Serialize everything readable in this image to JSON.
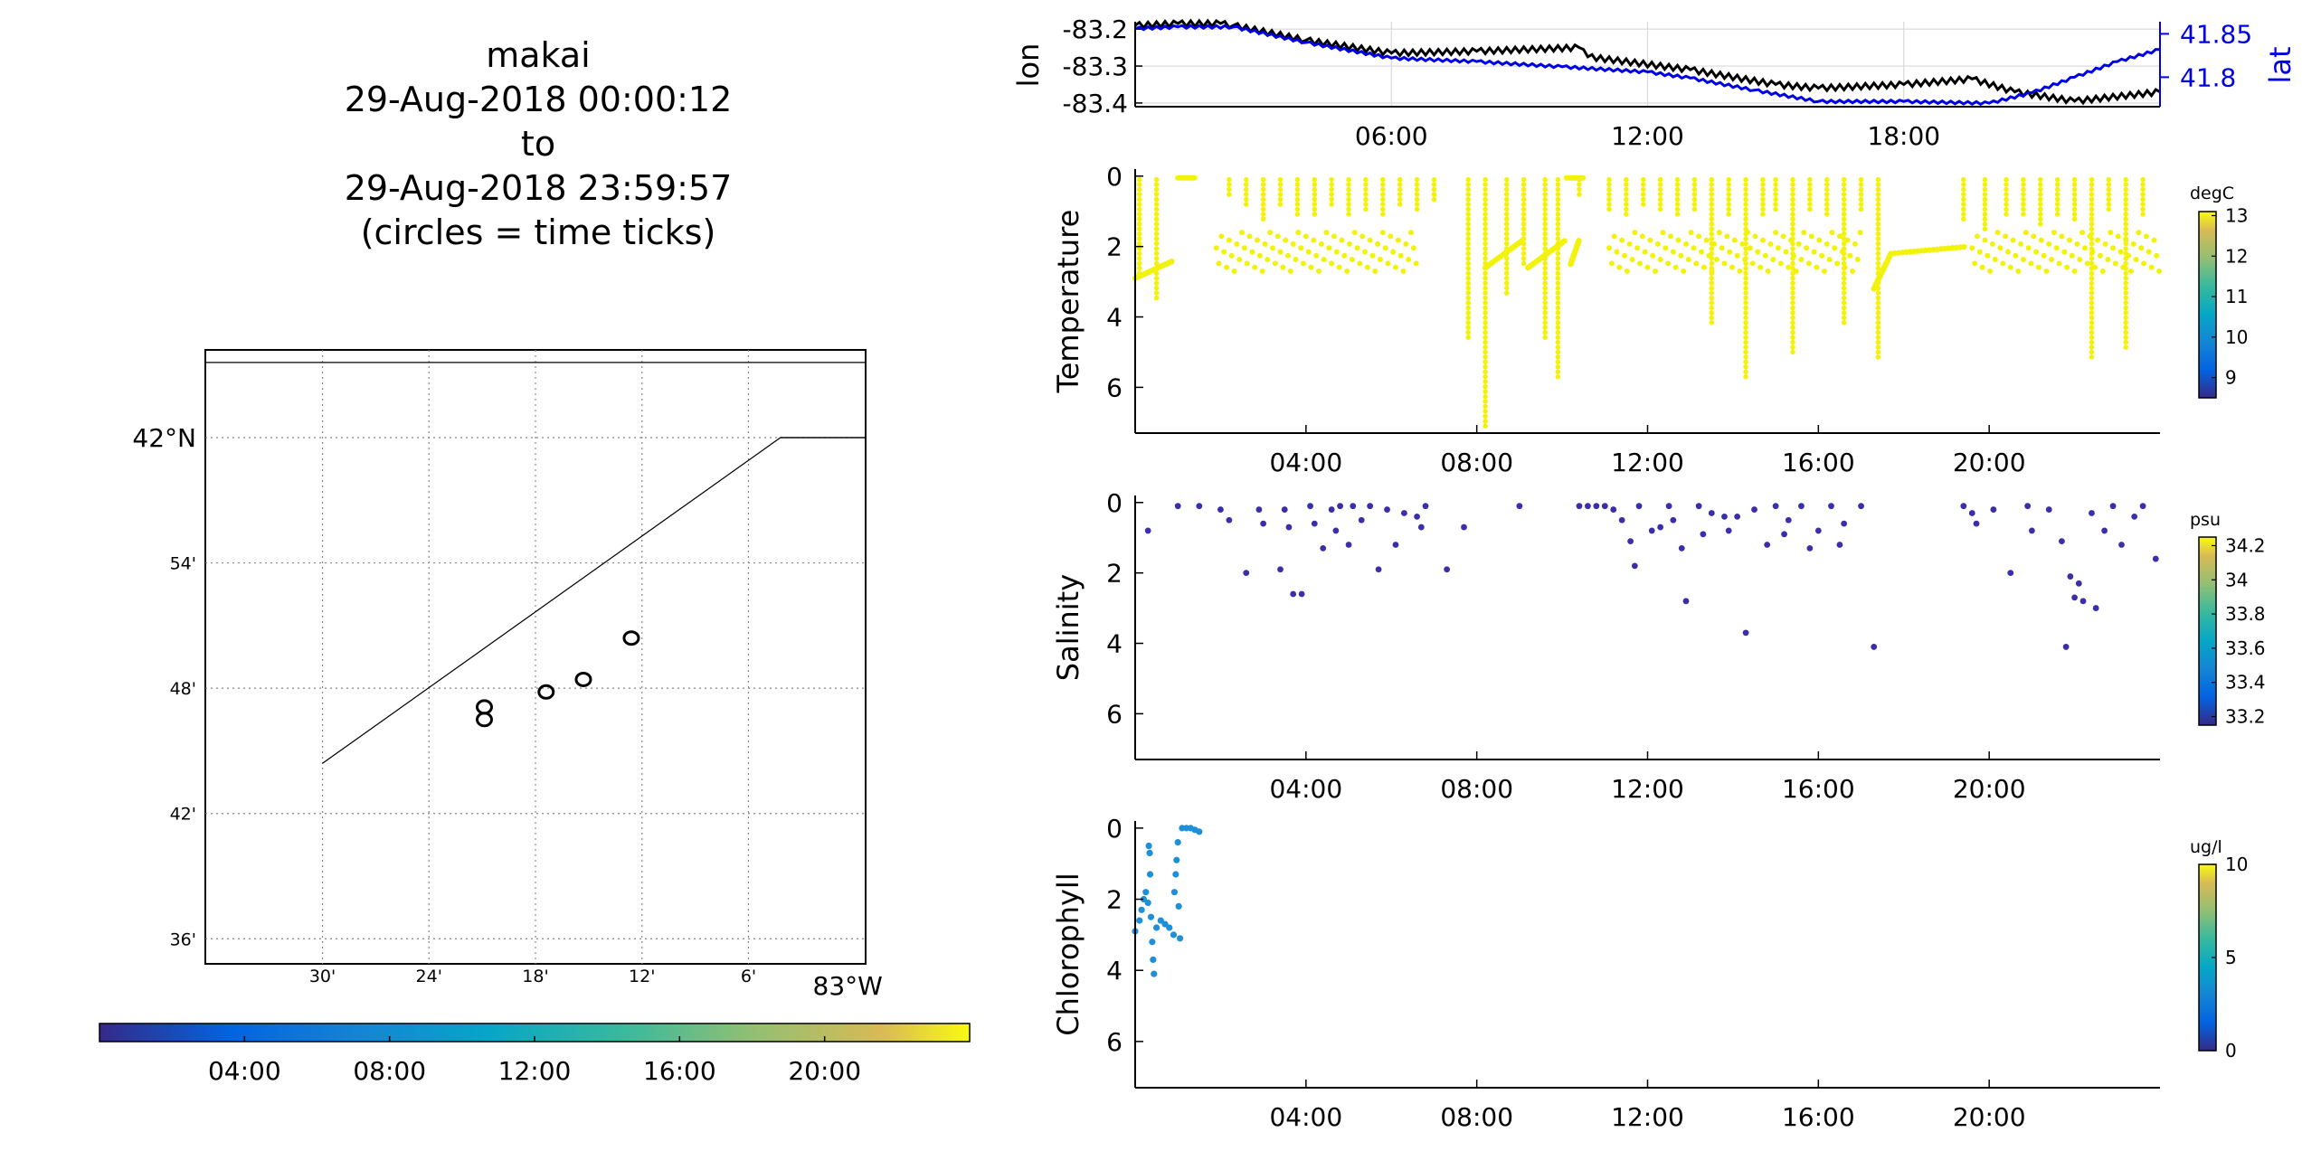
{
  "figure": {
    "title_lines": [
      "makai",
      "29-Aug-2018 00:00:12",
      "to",
      "29-Aug-2018 23:59:57",
      "(circles = time ticks)"
    ]
  },
  "chart_data": [
    {
      "id": "map",
      "type": "scatter",
      "title": "",
      "lat_ticks": [
        "36'",
        "42'",
        "48'",
        "54'",
        "42°N"
      ],
      "lat_values": [
        41.6,
        41.7,
        41.8,
        41.9,
        42.0
      ],
      "lon_ticks": [
        "30'",
        "24'",
        "18'",
        "12'",
        "6'",
        "83°W"
      ],
      "lon_values": [
        -83.5,
        -83.4,
        -83.3,
        -83.2,
        -83.1,
        -83.0
      ],
      "xlim": [
        -83.61,
        -82.99
      ],
      "ylim": [
        41.58,
        42.07
      ],
      "grid": true,
      "track": [
        [
          -83.5,
          41.74
        ],
        [
          -83.07,
          42.0
        ],
        [
          -82.99,
          42.0
        ]
      ],
      "track_upper_box": [
        [
          -83.07,
          42.0
        ],
        [
          -82.99,
          42.0
        ],
        [
          -82.99,
          42.06
        ],
        [
          -83.61,
          42.06
        ]
      ],
      "circles": [
        [
          -83.348,
          41.775
        ],
        [
          -83.348,
          41.785
        ],
        [
          -83.29,
          41.797
        ],
        [
          -83.255,
          41.807
        ],
        [
          -83.21,
          41.84
        ]
      ]
    },
    {
      "id": "time-colorbar",
      "type": "heatmap",
      "tick_labels": [
        "04:00",
        "08:00",
        "12:00",
        "16:00",
        "20:00"
      ],
      "tick_hours": [
        4,
        8,
        12,
        16,
        20
      ],
      "range_hours": [
        0,
        24
      ]
    },
    {
      "id": "lonlat",
      "type": "line",
      "xlim_hours": [
        0,
        24
      ],
      "x_tick_labels": [
        "06:00",
        "12:00",
        "18:00"
      ],
      "x_tick_hours": [
        6,
        12,
        18
      ],
      "grid": true,
      "left_axis": {
        "label": "lon",
        "ylim": [
          -83.41,
          -83.18
        ],
        "ticks": [
          "-83.2",
          "-83.3",
          "-83.4"
        ],
        "tick_values": [
          -83.2,
          -83.3,
          -83.4
        ]
      },
      "right_axis": {
        "label": "lat",
        "ylim": [
          41.766,
          41.864
        ],
        "ticks": [
          "41.85",
          "41.8"
        ],
        "tick_values": [
          41.85,
          41.8
        ]
      },
      "series": [
        {
          "axis": "left",
          "color": "#000000",
          "x": [
            0,
            1,
            2,
            2.3,
            4,
            6,
            8,
            10.4,
            10.6,
            13,
            15,
            16,
            18,
            19.6,
            20.6,
            22,
            24
          ],
          "y": [
            -83.19,
            -83.185,
            -83.185,
            -83.19,
            -83.23,
            -83.265,
            -83.26,
            -83.25,
            -83.275,
            -83.31,
            -83.35,
            -83.36,
            -83.35,
            -83.335,
            -83.37,
            -83.395,
            -83.37
          ]
        },
        {
          "axis": "right",
          "color": "#0000e6",
          "x": [
            0,
            1,
            2.3,
            4,
            6,
            8,
            10,
            12,
            13,
            14.5,
            16,
            18,
            20,
            21,
            22,
            23,
            24
          ],
          "y": [
            41.856,
            41.858,
            41.858,
            41.84,
            41.822,
            41.818,
            41.812,
            41.806,
            41.799,
            41.785,
            41.772,
            41.772,
            41.77,
            41.782,
            41.8,
            41.818,
            41.832
          ]
        }
      ]
    },
    {
      "id": "temperature",
      "type": "scatter",
      "ylabel": "Temperature",
      "y_ticks": [
        "0",
        "2",
        "4",
        "6"
      ],
      "y_tick_values": [
        0,
        2,
        4,
        6
      ],
      "ylim": [
        7.3,
        -0.2
      ],
      "x_tick_labels": [
        "04:00",
        "08:00",
        "12:00",
        "16:00",
        "20:00"
      ],
      "x_tick_hours": [
        4,
        8,
        12,
        16,
        20
      ],
      "xlim_hours": [
        0,
        24
      ],
      "colorbar": {
        "unit": "degC",
        "ticks": [
          "13",
          "12",
          "11",
          "10",
          "9"
        ],
        "tick_values": [
          13,
          12,
          11,
          10,
          9
        ],
        "range": [
          8.5,
          13.1
        ]
      },
      "point_color": "#f2f20d",
      "profiles": [
        [
          0.1,
          2.8
        ],
        [
          0.5,
          3.6
        ],
        [
          2.2,
          0.6
        ],
        [
          2.6,
          0.8
        ],
        [
          3.0,
          1.3
        ],
        [
          3.4,
          0.9
        ],
        [
          3.8,
          1.2
        ],
        [
          4.2,
          1.1
        ],
        [
          4.6,
          0.9
        ],
        [
          5.0,
          1.2
        ],
        [
          5.4,
          1.0
        ],
        [
          5.8,
          1.1
        ],
        [
          6.2,
          0.8
        ],
        [
          6.6,
          1.0
        ],
        [
          7.0,
          0.7
        ],
        [
          7.8,
          4.7
        ],
        [
          8.2,
          7.1
        ],
        [
          8.7,
          3.4
        ],
        [
          9.1,
          2.6
        ],
        [
          9.6,
          4.6
        ],
        [
          9.9,
          5.8
        ],
        [
          10.4,
          0.6
        ],
        [
          11.1,
          1.0
        ],
        [
          11.5,
          1.2
        ],
        [
          11.9,
          0.9
        ],
        [
          12.3,
          1.0
        ],
        [
          12.7,
          1.1
        ],
        [
          13.1,
          1.0
        ],
        [
          13.5,
          4.3
        ],
        [
          13.9,
          1.1
        ],
        [
          14.3,
          5.8
        ],
        [
          14.7,
          1.2
        ],
        [
          15.0,
          1.0
        ],
        [
          15.4,
          5.1
        ],
        [
          15.8,
          1.0
        ],
        [
          16.2,
          1.1
        ],
        [
          16.6,
          4.2
        ],
        [
          17.0,
          1.0
        ],
        [
          17.4,
          5.2
        ],
        [
          19.4,
          1.3
        ],
        [
          19.9,
          1.6
        ],
        [
          20.4,
          1.1
        ],
        [
          20.8,
          1.2
        ],
        [
          21.2,
          1.5
        ],
        [
          21.6,
          1.1
        ],
        [
          22.0,
          1.3
        ],
        [
          22.4,
          5.2
        ],
        [
          22.8,
          1.0
        ],
        [
          23.2,
          4.9
        ],
        [
          23.6,
          1.2
        ]
      ],
      "band_segments": [
        [
          1.9,
          6.6
        ],
        [
          11.1,
          17.0
        ],
        [
          19.6,
          24.0
        ]
      ],
      "band_depth": [
        1.6,
        2.7
      ],
      "connectors": [
        [
          0.0,
          2.9,
          0.9,
          2.4
        ],
        [
          8.2,
          2.6,
          9.1,
          1.8
        ],
        [
          9.2,
          2.6,
          10.1,
          1.8
        ],
        [
          10.2,
          2.5,
          10.4,
          1.8
        ],
        [
          17.3,
          3.2,
          17.7,
          2.2
        ],
        [
          17.7,
          2.2,
          19.5,
          2.0
        ]
      ],
      "surface_runs": [
        [
          1.0,
          1.4
        ],
        [
          10.1,
          10.5
        ]
      ]
    },
    {
      "id": "salinity",
      "type": "scatter",
      "ylabel": "Salinity",
      "y_ticks": [
        "0",
        "2",
        "4",
        "6"
      ],
      "y_tick_values": [
        0,
        2,
        4,
        6
      ],
      "ylim": [
        7.3,
        -0.2
      ],
      "x_tick_labels": [
        "04:00",
        "08:00",
        "12:00",
        "16:00",
        "20:00"
      ],
      "x_tick_hours": [
        4,
        8,
        12,
        16,
        20
      ],
      "xlim_hours": [
        0,
        24
      ],
      "colorbar": {
        "unit": "psu",
        "ticks": [
          "34.2",
          "34",
          "33.8",
          "33.6",
          "33.4",
          "33.2"
        ],
        "tick_values": [
          34.2,
          34.0,
          33.8,
          33.6,
          33.4,
          33.2
        ],
        "range": [
          33.15,
          34.25
        ]
      },
      "point_color": "#3a2fa8",
      "points": [
        [
          0.3,
          0.8
        ],
        [
          1.0,
          0.1
        ],
        [
          1.5,
          0.1
        ],
        [
          2.0,
          0.2
        ],
        [
          2.2,
          0.5
        ],
        [
          2.6,
          2.0
        ],
        [
          2.9,
          0.2
        ],
        [
          3.0,
          0.6
        ],
        [
          3.4,
          1.9
        ],
        [
          3.5,
          0.2
        ],
        [
          3.6,
          0.7
        ],
        [
          3.7,
          2.6
        ],
        [
          3.9,
          2.6
        ],
        [
          4.1,
          0.1
        ],
        [
          4.2,
          0.6
        ],
        [
          4.4,
          1.3
        ],
        [
          4.6,
          0.2
        ],
        [
          4.7,
          0.8
        ],
        [
          4.8,
          0.1
        ],
        [
          5.0,
          1.2
        ],
        [
          5.1,
          0.1
        ],
        [
          5.3,
          0.5
        ],
        [
          5.5,
          0.1
        ],
        [
          5.7,
          1.9
        ],
        [
          5.9,
          0.2
        ],
        [
          6.1,
          1.2
        ],
        [
          6.3,
          0.3
        ],
        [
          6.6,
          0.4
        ],
        [
          6.7,
          0.7
        ],
        [
          6.8,
          0.1
        ],
        [
          7.3,
          1.9
        ],
        [
          7.7,
          0.7
        ],
        [
          9.0,
          0.1
        ],
        [
          10.4,
          0.1
        ],
        [
          10.6,
          0.1
        ],
        [
          10.8,
          0.1
        ],
        [
          11.0,
          0.1
        ],
        [
          11.2,
          0.2
        ],
        [
          11.4,
          0.5
        ],
        [
          11.6,
          1.1
        ],
        [
          11.7,
          1.8
        ],
        [
          11.8,
          0.1
        ],
        [
          12.1,
          0.8
        ],
        [
          12.3,
          0.7
        ],
        [
          12.5,
          0.1
        ],
        [
          12.6,
          0.5
        ],
        [
          12.8,
          1.3
        ],
        [
          12.9,
          2.8
        ],
        [
          13.2,
          0.1
        ],
        [
          13.3,
          0.9
        ],
        [
          13.5,
          0.3
        ],
        [
          13.8,
          0.4
        ],
        [
          13.9,
          0.8
        ],
        [
          14.1,
          0.4
        ],
        [
          14.3,
          3.7
        ],
        [
          14.5,
          0.2
        ],
        [
          14.8,
          1.2
        ],
        [
          15.0,
          0.1
        ],
        [
          15.2,
          0.9
        ],
        [
          15.3,
          0.5
        ],
        [
          15.6,
          0.1
        ],
        [
          15.8,
          1.3
        ],
        [
          16.0,
          0.8
        ],
        [
          16.3,
          0.1
        ],
        [
          16.5,
          1.2
        ],
        [
          16.6,
          0.6
        ],
        [
          17.0,
          0.1
        ],
        [
          17.3,
          4.1
        ],
        [
          19.4,
          0.1
        ],
        [
          19.6,
          0.3
        ],
        [
          19.7,
          0.6
        ],
        [
          20.1,
          0.2
        ],
        [
          20.5,
          2.0
        ],
        [
          20.9,
          0.1
        ],
        [
          21.0,
          0.8
        ],
        [
          21.4,
          0.2
        ],
        [
          21.7,
          1.1
        ],
        [
          21.8,
          4.1
        ],
        [
          21.9,
          2.1
        ],
        [
          22.0,
          2.7
        ],
        [
          22.1,
          2.3
        ],
        [
          22.2,
          2.8
        ],
        [
          22.4,
          0.3
        ],
        [
          22.5,
          3.0
        ],
        [
          22.7,
          0.8
        ],
        [
          22.9,
          0.1
        ],
        [
          23.1,
          1.2
        ],
        [
          23.4,
          0.4
        ],
        [
          23.6,
          0.1
        ],
        [
          23.9,
          1.6
        ]
      ]
    },
    {
      "id": "chlorophyll",
      "type": "scatter",
      "ylabel": "Chlorophyll",
      "y_ticks": [
        "0",
        "2",
        "4",
        "6"
      ],
      "y_tick_values": [
        0,
        2,
        4,
        6
      ],
      "ylim": [
        7.3,
        -0.2
      ],
      "x_tick_labels": [
        "04:00",
        "08:00",
        "12:00",
        "16:00",
        "20:00"
      ],
      "x_tick_hours": [
        4,
        8,
        12,
        16,
        20
      ],
      "xlim_hours": [
        0,
        24
      ],
      "colorbar": {
        "unit": "ug/l",
        "ticks": [
          "10",
          "5",
          "0"
        ],
        "tick_values": [
          10,
          5,
          0
        ],
        "range": [
          0,
          10
        ]
      },
      "point_color": "#1f8fd8",
      "points": [
        [
          0.0,
          2.9
        ],
        [
          0.1,
          2.6
        ],
        [
          0.15,
          2.3
        ],
        [
          0.2,
          2.0
        ],
        [
          0.25,
          1.8
        ],
        [
          0.3,
          2.1
        ],
        [
          0.32,
          0.5
        ],
        [
          0.34,
          0.7
        ],
        [
          0.35,
          1.3
        ],
        [
          0.37,
          2.5
        ],
        [
          0.4,
          3.2
        ],
        [
          0.42,
          3.7
        ],
        [
          0.44,
          4.1
        ],
        [
          0.5,
          2.8
        ],
        [
          0.6,
          2.6
        ],
        [
          0.7,
          2.7
        ],
        [
          0.8,
          2.8
        ],
        [
          0.9,
          3.0
        ],
        [
          0.92,
          1.8
        ],
        [
          0.95,
          1.3
        ],
        [
          0.97,
          0.9
        ],
        [
          1.0,
          0.4
        ],
        [
          1.02,
          2.2
        ],
        [
          1.05,
          3.1
        ],
        [
          1.1,
          0.0
        ],
        [
          1.2,
          0.0
        ],
        [
          1.3,
          0.0
        ],
        [
          1.4,
          0.05
        ],
        [
          1.5,
          0.1
        ]
      ]
    }
  ]
}
